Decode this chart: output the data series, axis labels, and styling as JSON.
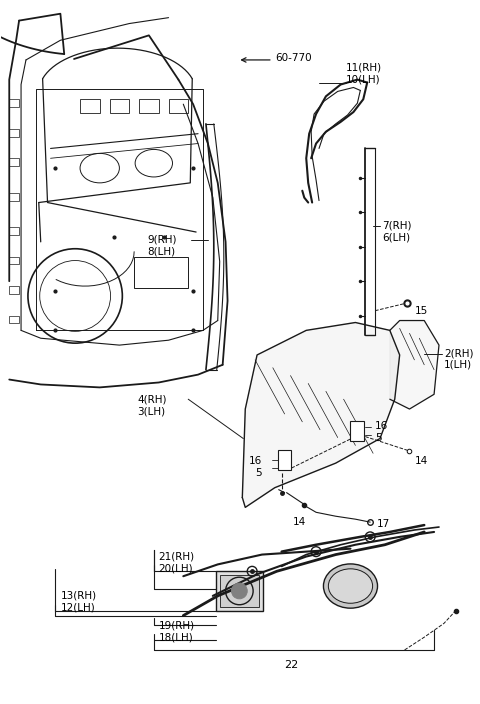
{
  "background_color": "#ffffff",
  "line_color": "#1a1a1a",
  "fig_width": 4.8,
  "fig_height": 7.04,
  "dpi": 100,
  "parts": {
    "60_770": "60-770",
    "11RH": "11(RH)",
    "10LH": "10(LH)",
    "9RH": "9(RH)",
    "8LH": "8(LH)",
    "7RH": "7(RH)",
    "6LH": "6(LH)",
    "15": "15",
    "2RH": "2(RH)",
    "1LH": "1(LH)",
    "4RH": "4(RH)",
    "3LH": "3(LH)",
    "16": "16",
    "5": "5",
    "14": "14",
    "17": "17",
    "21RH": "21(RH)",
    "20LH": "20(LH)",
    "13RH": "13(RH)",
    "12LH": "12(LH)",
    "19RH": "19(RH)",
    "18LH": "18(LH)",
    "22": "22"
  }
}
